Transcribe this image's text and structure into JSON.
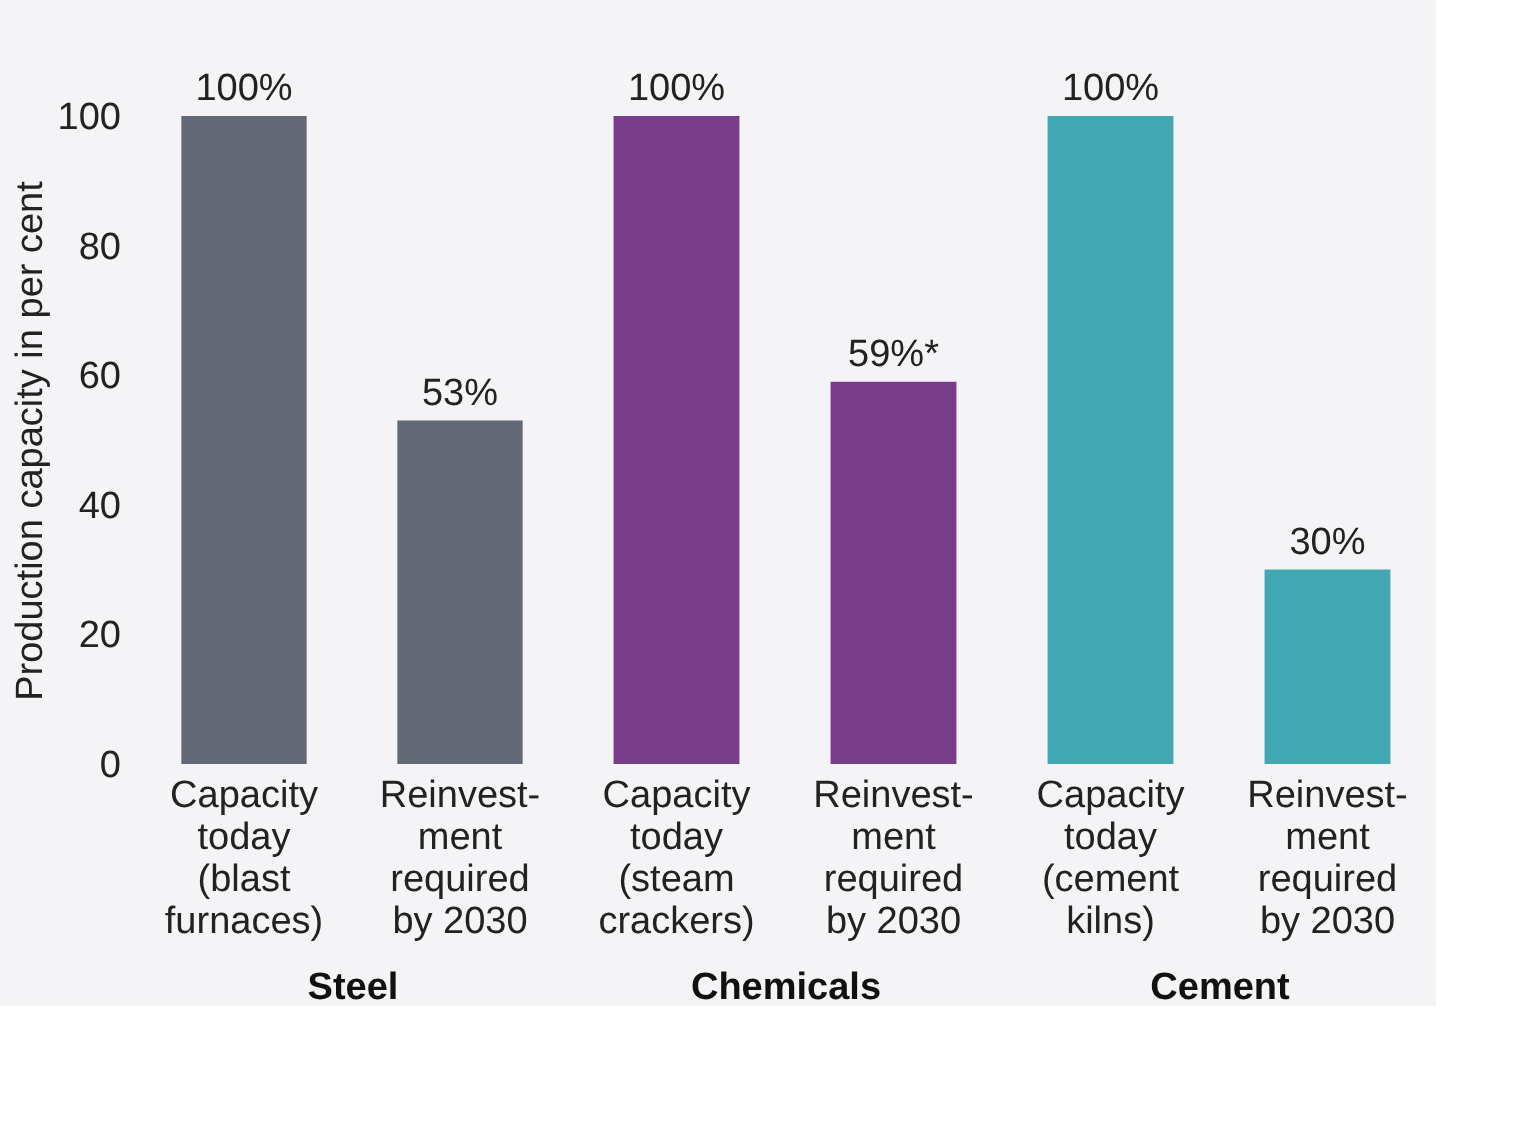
{
  "chart_data": [
    {
      "type": "bar",
      "xlabel": "Steel",
      "ylabel": "Production capacity in per cent",
      "categories": [
        "Capacity\ntoday\n(blast\nfurnaces)",
        "Reinvest-\nment\nrequired\nby 2030"
      ],
      "values": [
        100,
        53
      ],
      "color": "#626876",
      "value_labels": [
        "100%",
        "53%"
      ],
      "ylim": [
        0,
        100
      ],
      "yticks": [
        0,
        20,
        40,
        60,
        80,
        100
      ],
      "grid": false
    },
    {
      "type": "bar",
      "xlabel": "Chemicals",
      "categories": [
        "Capacity\ntoday\n(steam\ncrackers)",
        "Reinvest-\nment\nrequired\nby 2030"
      ],
      "values": [
        100,
        59
      ],
      "color": "#7a3d8c",
      "value_labels": [
        "100%",
        "59%*"
      ],
      "ylim": [
        0,
        100
      ],
      "yticks": [
        0,
        20,
        40,
        60,
        80,
        100
      ],
      "tick_labels": "x",
      "grid": false
    },
    {
      "type": "bar",
      "xlabel": "Cement",
      "categories": [
        "Capacity\ntoday\n(cement\nkilns)",
        "Reinvest-\nment\nrequired\nby 2030"
      ],
      "values": [
        100,
        30
      ],
      "color": "#41a8b3",
      "value_labels": [
        "100%",
        "30%"
      ],
      "ylim": [
        0,
        100
      ],
      "yticks": [
        0,
        20,
        40,
        60,
        80,
        100
      ],
      "tick_labels": "x",
      "grid": false
    }
  ]
}
